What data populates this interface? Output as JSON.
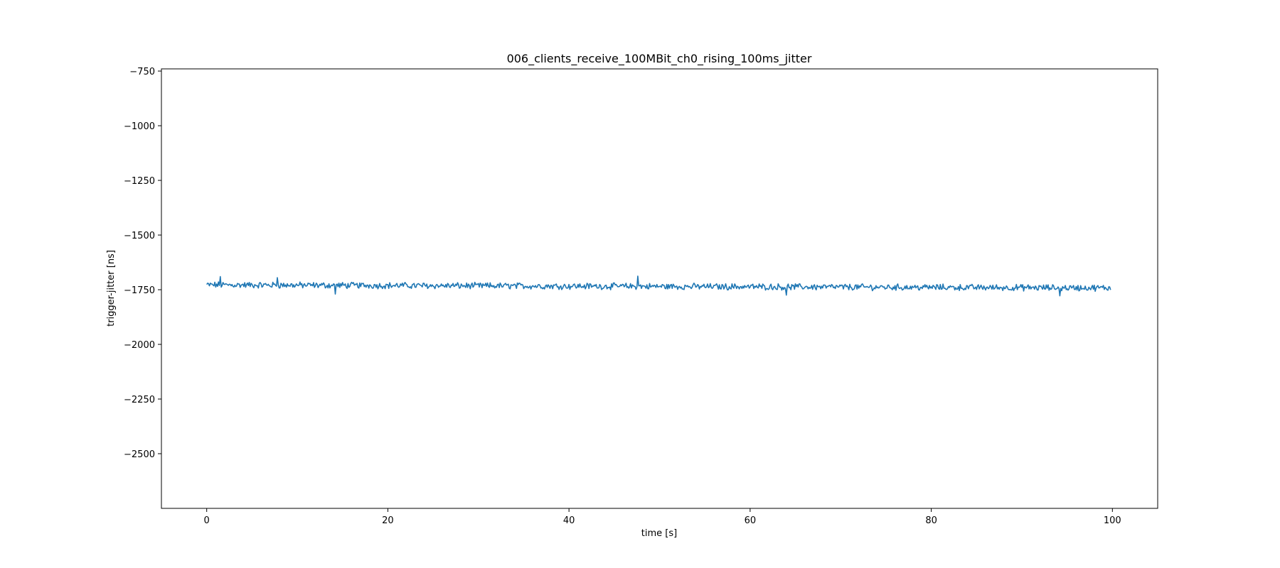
{
  "chart_data": {
    "type": "line",
    "title": "006_clients_receive_100MBit_ch0_rising_100ms_jitter",
    "xlabel": "time [s]",
    "ylabel": "trigger-jitter [ns]",
    "xlim": [
      -5,
      105
    ],
    "ylim": [
      -2750,
      -740
    ],
    "xticks": [
      0,
      20,
      40,
      60,
      80,
      100
    ],
    "xtick_labels": [
      "0",
      "20",
      "40",
      "60",
      "80",
      "100"
    ],
    "yticks": [
      -750,
      -1000,
      -1250,
      -1500,
      -1750,
      -2000,
      -2250,
      -2500
    ],
    "ytick_labels": [
      "−750",
      "−1000",
      "−1250",
      "−1500",
      "−1750",
      "−2000",
      "−2250",
      "−2500"
    ],
    "grid": false,
    "series": [
      {
        "color": "#1f77b4",
        "x": {
          "start": 0,
          "end": 99.8,
          "step": 0.1
        },
        "y_trend": {
          "start": -1728,
          "end": -1742
        },
        "y_noise_amplitude": 12,
        "y_min": -1778,
        "y_max": -1688,
        "notable_points": [
          {
            "x": 1.5,
            "y": -1690
          },
          {
            "x": 7.8,
            "y": -1695
          },
          {
            "x": 14.2,
            "y": -1770
          },
          {
            "x": 47.6,
            "y": -1688
          },
          {
            "x": 64.0,
            "y": -1775
          },
          {
            "x": 94.2,
            "y": -1778
          }
        ]
      }
    ]
  }
}
